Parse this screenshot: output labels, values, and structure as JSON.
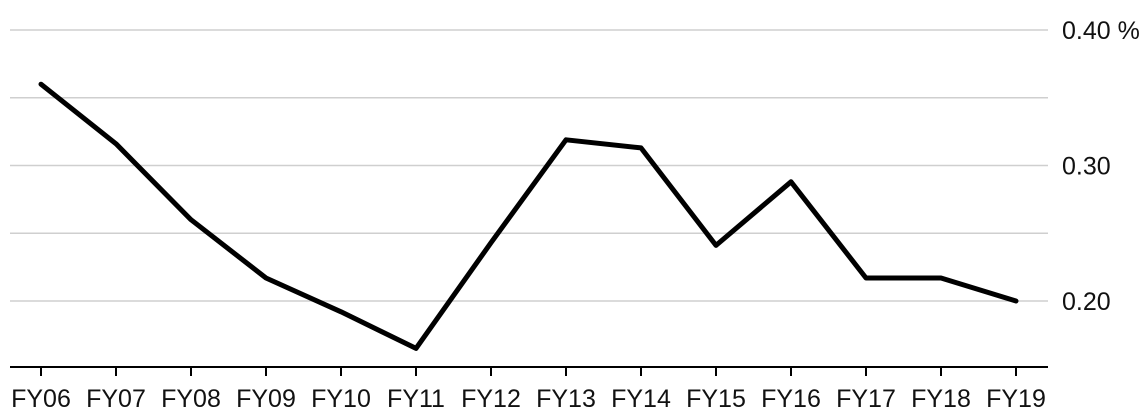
{
  "chart_data": {
    "type": "line",
    "categories": [
      "FY06",
      "FY07",
      "FY08",
      "FY09",
      "FY10",
      "FY11",
      "FY12",
      "FY13",
      "FY14",
      "FY15",
      "FY16",
      "FY17",
      "FY18",
      "FY19"
    ],
    "series": [
      {
        "values": [
          0.36,
          0.316,
          0.26,
          0.217,
          0.192,
          0.165,
          0.243,
          0.319,
          0.313,
          0.241,
          0.288,
          0.217,
          0.217,
          0.2
        ]
      }
    ],
    "y_ticks": [
      {
        "value": 0.4,
        "label": "0.40 %"
      },
      {
        "value": 0.3,
        "label": "0.30"
      },
      {
        "value": 0.2,
        "label": "0.20"
      }
    ],
    "gridlines": [
      0.4,
      0.35,
      0.3,
      0.25,
      0.2
    ],
    "ylim": [
      0.14,
      0.4
    ],
    "grid": true,
    "legend": "none",
    "colors": {
      "line": "#000000",
      "grid": "#cfcfcf",
      "axis": "#000000"
    }
  }
}
